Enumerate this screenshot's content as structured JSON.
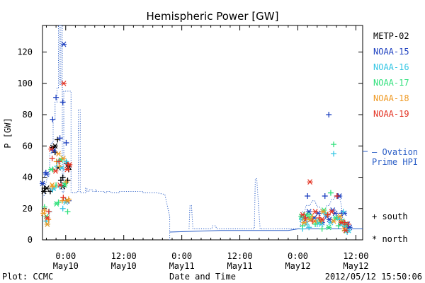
{
  "chart_data": {
    "type": "scatter",
    "title": "Hemispheric Power [GW]",
    "ylabel": "P [GW]",
    "xlabel": "Date and Time",
    "ylim": [
      0,
      137
    ],
    "yticks": [
      0,
      20,
      40,
      60,
      80,
      100,
      120
    ],
    "x_unit": "hours since 2012/05/09 00:00 UT",
    "xlim": [
      19.2,
      85.4
    ],
    "xticks": [
      {
        "x": 24,
        "time": "0:00",
        "date": "May10"
      },
      {
        "x": 36,
        "time": "12:00",
        "date": "May10"
      },
      {
        "x": 48,
        "time": "0:00",
        "date": "May11"
      },
      {
        "x": 60,
        "time": "12:00",
        "date": "May11"
      },
      {
        "x": 72,
        "time": "0:00",
        "date": "May12"
      },
      {
        "x": 84,
        "time": "12:00",
        "date": "May12"
      }
    ],
    "plot_label": "Plot: CCMC",
    "timestamp": "2012/05/12 15:50:06",
    "symbol_legend": {
      "south": "+ south",
      "north": "* north"
    },
    "ovation": {
      "name": "Ovation Prime HPI",
      "label_line1": "— Ovation",
      "label_line2": "Prime HPI",
      "color": "#2c5fc7",
      "dotted_x": [
        19.2,
        19.5,
        19.8,
        20.1,
        20.4,
        20.7,
        20.7,
        21.0,
        21.0,
        21.4,
        21.4,
        21.8,
        21.8,
        22.2,
        22.2,
        22.5,
        22.5,
        22.8,
        22.8,
        23.0,
        23.0,
        23.3,
        23.3,
        23.6,
        23.6,
        25.1,
        25.1,
        26.3,
        26.3,
        26.6,
        26.6,
        27.0,
        27.0,
        28.1,
        28.1,
        28.4,
        28.4,
        28.8,
        28.8,
        29.6,
        29.6,
        30.1,
        30.1,
        30.4,
        30.4,
        32.0,
        32.0,
        32.5,
        32.5,
        33.3,
        33.3,
        35.0,
        35.0,
        40.0,
        40.0,
        41.0,
        43.0,
        44.5,
        45.5,
        45.5
      ],
      "dotted_y": [
        27,
        28,
        34,
        39,
        40,
        42,
        55,
        55,
        62,
        62,
        77,
        77,
        88,
        88,
        97,
        97,
        137,
        137,
        99,
        99,
        137,
        137,
        30,
        30,
        95,
        95,
        30,
        30,
        31,
        31,
        83,
        83,
        30,
        30,
        33,
        33,
        31,
        31,
        32,
        32,
        31,
        31,
        32,
        32,
        31,
        31,
        30,
        30,
        31,
        31,
        30,
        30,
        31,
        31,
        30,
        30,
        30,
        29,
        15,
        0
      ],
      "solid": [
        [
          45.5,
          5
        ],
        [
          56,
          6
        ],
        [
          60,
          6
        ],
        [
          70,
          6
        ],
        [
          72,
          7
        ],
        [
          85.4,
          7
        ]
      ],
      "dotted2": [
        [
          49.5,
          7
        ],
        [
          49.7,
          22
        ],
        [
          50.0,
          22
        ],
        [
          50.3,
          7
        ],
        [
          54.2,
          7
        ],
        [
          54.4,
          9
        ],
        [
          55.0,
          9
        ],
        [
          55.2,
          7
        ],
        [
          63.0,
          7
        ],
        [
          63.2,
          39
        ],
        [
          63.5,
          39
        ],
        [
          63.8,
          25
        ],
        [
          64.2,
          7
        ],
        [
          72.5,
          7
        ],
        [
          72.8,
          18
        ],
        [
          73.4,
          18
        ],
        [
          73.7,
          22
        ],
        [
          74.5,
          22
        ],
        [
          75.0,
          25
        ],
        [
          75.5,
          25
        ],
        [
          76.0,
          21
        ],
        [
          76.5,
          21
        ],
        [
          77.0,
          18
        ],
        [
          77.5,
          18
        ],
        [
          78.0,
          22
        ],
        [
          78.5,
          22
        ],
        [
          79.0,
          26
        ],
        [
          79.5,
          26
        ],
        [
          80.0,
          29
        ],
        [
          80.5,
          29
        ],
        [
          81.0,
          22
        ],
        [
          81.5,
          7
        ],
        [
          85.4,
          7
        ]
      ]
    },
    "series": [
      {
        "name": "METP-02",
        "color": "#000000",
        "south": [
          [
            19.6,
            33
          ],
          [
            20.8,
            31
          ],
          [
            21.8,
            56
          ],
          [
            22.3,
            64
          ],
          [
            23.0,
            38
          ],
          [
            23.4,
            40
          ],
          [
            24.2,
            49
          ],
          [
            24.4,
            38
          ],
          [
            24.6,
            45
          ]
        ],
        "north": [
          [
            19.5,
            31
          ],
          [
            20.1,
            33
          ],
          [
            21.3,
            59
          ],
          [
            21.8,
            60
          ],
          [
            22.5,
            46
          ],
          [
            23.4,
            34
          ],
          [
            24.3,
            25
          ],
          [
            24.6,
            47
          ]
        ]
      },
      {
        "name": "NOAA-15",
        "color": "#1c3fbf",
        "south": [
          [
            19.9,
            43
          ],
          [
            21.3,
            77
          ],
          [
            22.0,
            91
          ],
          [
            22.8,
            65
          ],
          [
            23.4,
            88
          ],
          [
            24.1,
            62
          ],
          [
            24.6,
            25
          ],
          [
            74.0,
            28
          ],
          [
            77.6,
            28
          ],
          [
            78.4,
            80
          ],
          [
            80.1,
            28
          ],
          [
            80.3,
            28
          ],
          [
            81.0,
            17
          ],
          [
            82.1,
            8
          ]
        ],
        "north": [
          [
            19.2,
            36
          ],
          [
            20.0,
            42
          ],
          [
            21.5,
            57
          ],
          [
            23.6,
            125
          ],
          [
            73.5,
            13
          ],
          [
            74.3,
            18
          ],
          [
            75.4,
            14
          ],
          [
            76.2,
            17
          ],
          [
            77.0,
            11
          ],
          [
            78.0,
            15
          ],
          [
            78.5,
            13
          ],
          [
            79.2,
            19
          ],
          [
            79.7,
            17
          ],
          [
            80.6,
            28
          ],
          [
            81.6,
            17
          ],
          [
            82.3,
            10
          ],
          [
            82.7,
            8
          ]
        ]
      },
      {
        "name": "NOAA-16",
        "color": "#34c6e4",
        "south": [
          [
            20.0,
            12
          ],
          [
            20.6,
            18
          ],
          [
            21.3,
            32
          ],
          [
            22.2,
            47
          ],
          [
            22.8,
            34
          ],
          [
            23.4,
            20
          ],
          [
            24.1,
            50
          ],
          [
            73.0,
            7
          ],
          [
            74.3,
            8
          ],
          [
            76.0,
            10
          ],
          [
            77.6,
            17
          ],
          [
            79.4,
            55
          ],
          [
            80.6,
            13
          ],
          [
            81.4,
            18
          ],
          [
            82.2,
            5
          ]
        ],
        "north": [
          [
            20.2,
            10
          ],
          [
            21.5,
            33
          ],
          [
            22.5,
            50
          ],
          [
            23.2,
            46
          ],
          [
            24.0,
            24
          ],
          [
            72.8,
            13
          ],
          [
            73.7,
            10
          ],
          [
            74.6,
            13
          ],
          [
            75.9,
            12
          ],
          [
            76.8,
            10
          ],
          [
            77.8,
            16
          ],
          [
            78.8,
            11
          ],
          [
            80.2,
            14
          ],
          [
            80.9,
            10
          ],
          [
            81.8,
            9
          ],
          [
            82.5,
            6
          ]
        ]
      },
      {
        "name": "NOAA-17",
        "color": "#2ee07a",
        "south": [
          [
            19.6,
            21
          ],
          [
            21.3,
            45
          ],
          [
            22.0,
            35
          ],
          [
            22.5,
            24
          ],
          [
            23.2,
            52
          ],
          [
            23.9,
            36
          ],
          [
            24.4,
            18
          ],
          [
            73.0,
            9
          ],
          [
            74.3,
            16
          ],
          [
            75.6,
            10
          ],
          [
            77.0,
            7
          ],
          [
            78.8,
            30
          ],
          [
            79.4,
            61
          ],
          [
            80.4,
            9
          ],
          [
            81.7,
            6
          ]
        ],
        "north": [
          [
            20.0,
            15
          ],
          [
            21.0,
            45
          ],
          [
            22.1,
            23
          ],
          [
            23.0,
            51
          ],
          [
            23.8,
            35
          ],
          [
            72.7,
            15
          ],
          [
            73.6,
            16
          ],
          [
            74.4,
            14
          ],
          [
            76.6,
            12
          ],
          [
            77.4,
            19
          ],
          [
            78.4,
            8
          ],
          [
            79.8,
            14
          ],
          [
            81.2,
            12
          ],
          [
            81.9,
            10
          ]
        ]
      },
      {
        "name": "NOAA-18",
        "color": "#ef9a24",
        "south": [
          [
            19.6,
            19
          ],
          [
            20.4,
            13
          ],
          [
            21.3,
            34
          ],
          [
            22.1,
            50
          ],
          [
            22.7,
            47
          ],
          [
            23.3,
            25
          ],
          [
            24.1,
            37
          ],
          [
            24.6,
            26
          ],
          [
            73.5,
            13
          ],
          [
            75.0,
            15
          ],
          [
            76.8,
            12
          ],
          [
            78.1,
            16
          ],
          [
            80.9,
            12
          ]
        ],
        "north": [
          [
            19.4,
            17
          ],
          [
            20.2,
            10
          ],
          [
            21.2,
            35
          ],
          [
            22.5,
            55
          ],
          [
            23.5,
            52
          ],
          [
            24.4,
            25
          ],
          [
            73.3,
            11
          ],
          [
            74.5,
            13
          ],
          [
            75.5,
            12
          ],
          [
            77.2,
            18
          ],
          [
            79.4,
            12
          ],
          [
            80.7,
            15
          ],
          [
            81.6,
            7
          ]
        ]
      },
      {
        "name": "NOAA-19",
        "color": "#e33222",
        "south": [
          [
            20.5,
            18
          ],
          [
            21.2,
            52
          ],
          [
            22.6,
            50
          ],
          [
            23.5,
            27
          ],
          [
            24.5,
            48
          ],
          [
            73.6,
            14
          ],
          [
            75.0,
            12
          ],
          [
            76.4,
            14
          ],
          [
            78.2,
            16
          ],
          [
            80.1,
            28
          ],
          [
            81.7,
            11
          ],
          [
            82.4,
            10
          ]
        ],
        "north": [
          [
            20.2,
            14
          ],
          [
            21.0,
            58
          ],
          [
            21.9,
            44
          ],
          [
            22.8,
            35
          ],
          [
            23.6,
            100
          ],
          [
            24.3,
            45
          ],
          [
            24.8,
            48
          ],
          [
            73.0,
            16
          ],
          [
            74.5,
            37
          ],
          [
            75.6,
            18
          ],
          [
            77.0,
            13
          ],
          [
            79.0,
            18
          ],
          [
            81.0,
            11
          ],
          [
            81.9,
            6
          ]
        ]
      }
    ]
  }
}
